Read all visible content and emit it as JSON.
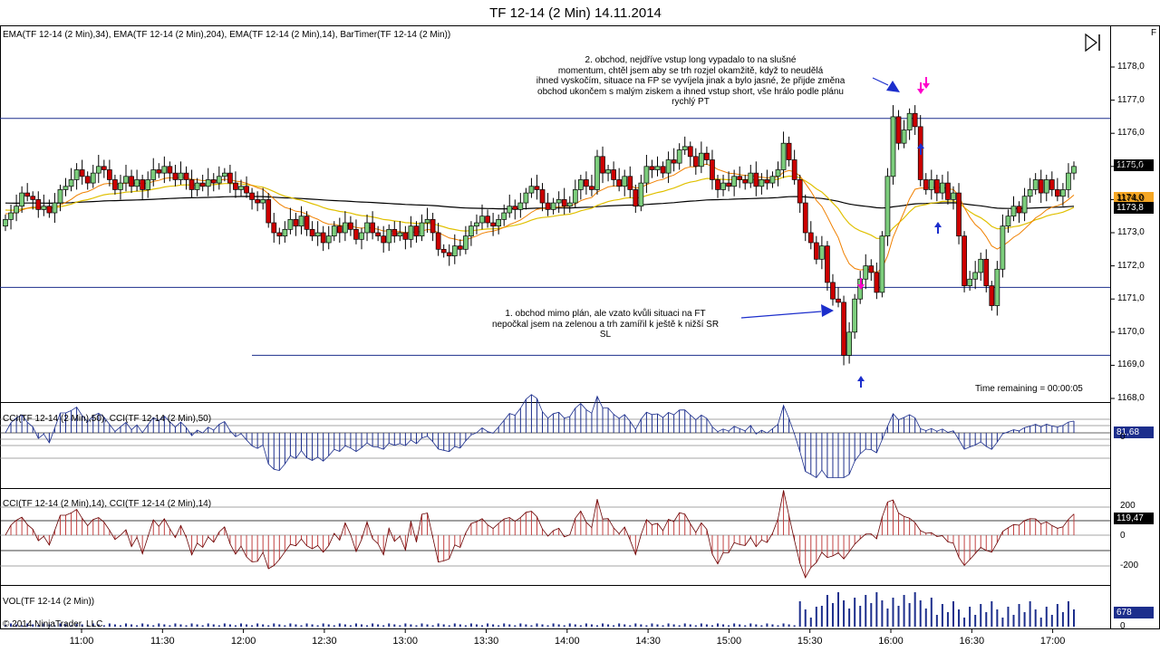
{
  "window": {
    "title": "TF 12-14 (2 Min)  14.11.2014"
  },
  "header": {
    "indicators": "EMA(TF 12-14 (2 Min),34), EMA(TF 12-14 (2 Min),204), EMA(TF 12-14 (2 Min),14), BarTimer(TF 12-14 (2 Min))",
    "f_label": "F"
  },
  "annotations": {
    "trade2": [
      "2. obchod, nejdříve vstup long vypadalo to na slušné",
      "momentum, chtěl jsem aby se trh rozjel okamžitě, když to neudělá",
      "ihned vyskočím, situace na FP se vyvíjela jinak a bylo jasné, že přijde změna",
      "obchod ukončem s malým ziskem a ihned vstup short, vše hrálo podle plánu",
      "rychlý PT"
    ],
    "trade1": [
      "1. obchod mimo plán, ale vzato kvůli situaci na FT",
      "nepočkal jsem na zelenou a trh zamířil k ještě k nižší SR",
      "SL"
    ],
    "timer": "Time remaining = 00:00:05"
  },
  "panels": {
    "cci50": {
      "label": "CCI(TF 12-14 (2 Min),50), CCI(TF 12-14 (2 Min),50)",
      "value": "81,68",
      "color": "#1c2e8c"
    },
    "cci14": {
      "label": "CCI(TF 12-14 (2 Min),14), CCI(TF 12-14 (2 Min),14)",
      "value": "119,47",
      "color": "#a01010",
      "ticks": [
        "200",
        "0",
        "-200"
      ]
    },
    "vol": {
      "label": "VOL(TF 12-14 (2 Min))",
      "value": "678",
      "color": "#1c2e8c",
      "ticks": [
        "0"
      ]
    }
  },
  "copyright": "© 2014 NinjaTrader, LLC",
  "chart_data": {
    "type": "candlestick",
    "price_axis": [
      "1178,0",
      "1177,0",
      "1176,0",
      "1175,0",
      "1174,0",
      "1173,0",
      "1172,0",
      "1171,0",
      "1170,0",
      "1169,0",
      "1168,0"
    ],
    "ylim": [
      1168.0,
      1178.8
    ],
    "time_axis": [
      "11:00",
      "11:30",
      "12:00",
      "12:30",
      "13:00",
      "13:30",
      "14:00",
      "14:30",
      "15:00",
      "15:30",
      "16:00",
      "16:30",
      "17:00"
    ],
    "last_price": "1175,0",
    "ema14_value": "1174,0",
    "ema34_value": "1173,8",
    "sr_levels": [
      1176.45,
      1171.35,
      1169.3
    ],
    "closes": [
      1173.4,
      1173.6,
      1173.8,
      1174.2,
      1174.1,
      1174.0,
      1173.7,
      1173.8,
      1173.6,
      1173.9,
      1174.3,
      1174.4,
      1174.6,
      1174.9,
      1174.7,
      1174.5,
      1174.8,
      1175.0,
      1174.9,
      1174.6,
      1174.3,
      1174.5,
      1174.7,
      1174.4,
      1174.6,
      1174.3,
      1174.6,
      1174.9,
      1174.8,
      1175.0,
      1174.8,
      1174.6,
      1174.8,
      1174.6,
      1174.3,
      1174.5,
      1174.4,
      1174.6,
      1174.5,
      1174.7,
      1174.8,
      1174.5,
      1174.3,
      1174.4,
      1174.2,
      1174.0,
      1173.9,
      1174.0,
      1173.3,
      1173.0,
      1172.9,
      1173.1,
      1173.4,
      1173.2,
      1173.5,
      1173.1,
      1172.9,
      1173.0,
      1172.7,
      1172.9,
      1173.2,
      1173.0,
      1173.3,
      1173.1,
      1172.8,
      1173.0,
      1173.3,
      1173.0,
      1172.9,
      1172.7,
      1173.1,
      1172.9,
      1173.0,
      1172.8,
      1173.2,
      1172.9,
      1173.3,
      1173.4,
      1173.0,
      1172.5,
      1172.4,
      1172.3,
      1172.6,
      1172.5,
      1172.9,
      1173.2,
      1173.3,
      1173.5,
      1173.3,
      1173.2,
      1173.4,
      1173.6,
      1173.8,
      1173.7,
      1173.9,
      1174.2,
      1174.4,
      1174.3,
      1173.9,
      1173.7,
      1173.9,
      1174.0,
      1173.8,
      1173.9,
      1174.3,
      1174.6,
      1174.4,
      1174.3,
      1175.3,
      1174.8,
      1174.9,
      1174.6,
      1174.4,
      1174.7,
      1174.3,
      1173.8,
      1174.5,
      1175.0,
      1174.9,
      1175.0,
      1174.8,
      1175.2,
      1175.1,
      1175.5,
      1175.6,
      1175.3,
      1175.0,
      1175.4,
      1175.2,
      1174.6,
      1174.3,
      1174.5,
      1174.4,
      1174.7,
      1174.6,
      1174.5,
      1174.8,
      1174.4,
      1174.6,
      1174.5,
      1174.7,
      1174.9,
      1175.7,
      1175.2,
      1174.6,
      1173.9,
      1173.0,
      1172.7,
      1172.2,
      1172.6,
      1171.5,
      1171.0,
      1170.9,
      1169.3,
      1170.0,
      1171.0,
      1171.6,
      1172.0,
      1171.8,
      1171.2,
      1172.9,
      1174.7,
      1176.5,
      1175.7,
      1176.1,
      1176.6,
      1176.2,
      1174.6,
      1174.3,
      1174.6,
      1174.2,
      1174.5,
      1174.0,
      1174.2,
      1172.9,
      1171.4,
      1171.6,
      1171.8,
      1172.2,
      1171.4,
      1170.8,
      1171.9,
      1173.2,
      1173.5,
      1173.8,
      1173.6,
      1174.1,
      1174.3,
      1174.6,
      1174.2,
      1174.6,
      1174.3,
      1174.1,
      1174.3,
      1174.8,
      1175.0
    ]
  }
}
